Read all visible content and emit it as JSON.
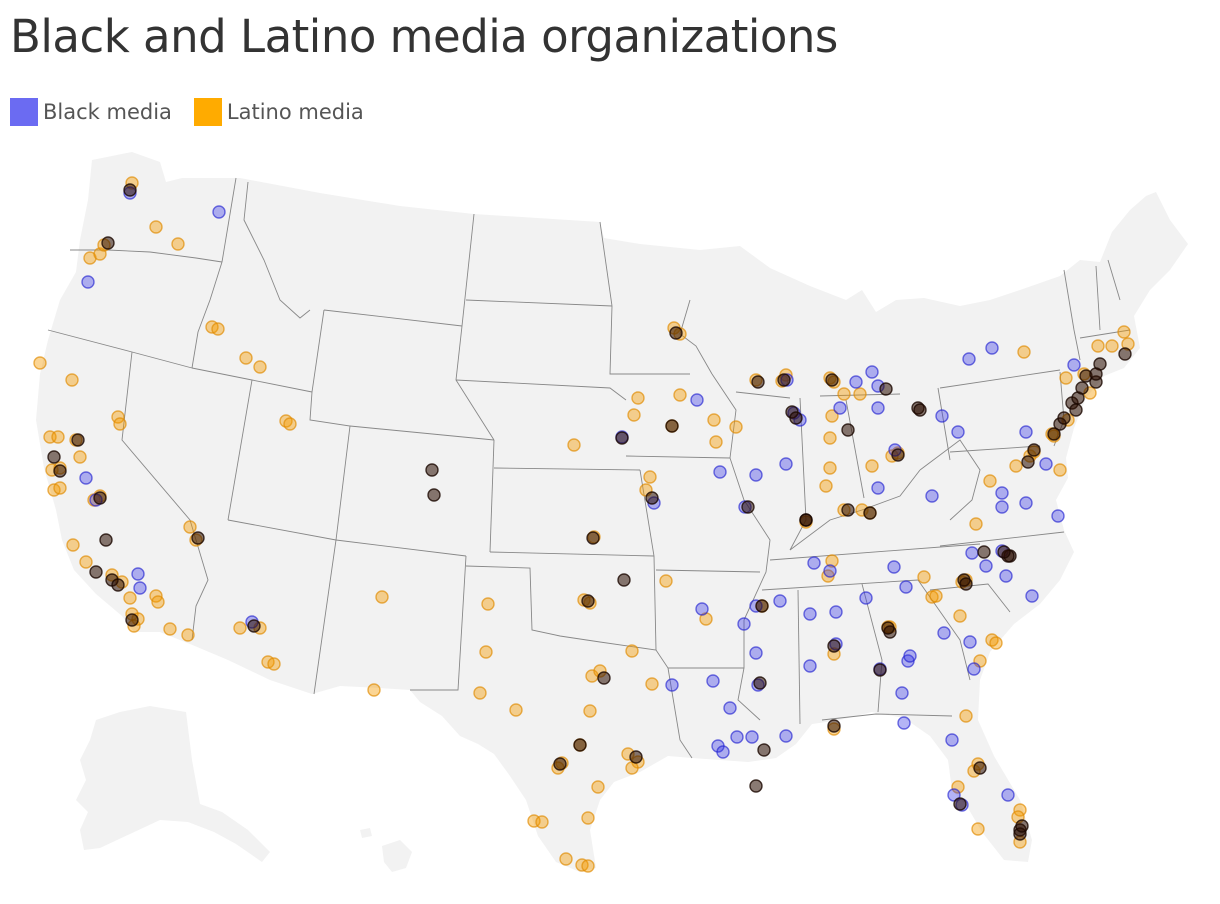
{
  "title": "Black and Latino media organizations",
  "legend": [
    {
      "label": "Black media",
      "color": "#6b6bf2"
    },
    {
      "label": "Latino media",
      "color": "#ffab00"
    }
  ],
  "colors": {
    "land": "#f2f2f2",
    "border": "#888888",
    "black_media": "#3a3ae8",
    "latino_media": "#f59a00",
    "overlap_dark": "#2a0c00"
  },
  "map_type": "dot map of organization locations over US states",
  "markers": {
    "black": [
      [
        130,
        193
      ],
      [
        219,
        212
      ],
      [
        88,
        282
      ],
      [
        86,
        478
      ],
      [
        96,
        500
      ],
      [
        138,
        574
      ],
      [
        140,
        588
      ],
      [
        252,
        622
      ],
      [
        622,
        437
      ],
      [
        654,
        503
      ],
      [
        697,
        400
      ],
      [
        720,
        472
      ],
      [
        745,
        507
      ],
      [
        756,
        475
      ],
      [
        786,
        464
      ],
      [
        800,
        420
      ],
      [
        787,
        380
      ],
      [
        794,
        413
      ],
      [
        856,
        382
      ],
      [
        872,
        372
      ],
      [
        878,
        386
      ],
      [
        878,
        408
      ],
      [
        840,
        408
      ],
      [
        878,
        488
      ],
      [
        895,
        450
      ],
      [
        932,
        496
      ],
      [
        969,
        359
      ],
      [
        992,
        348
      ],
      [
        958,
        432
      ],
      [
        942,
        416
      ],
      [
        1002,
        493
      ],
      [
        1002,
        507
      ],
      [
        1026,
        503
      ],
      [
        1002,
        551
      ],
      [
        1032,
        596
      ],
      [
        986,
        566
      ],
      [
        972,
        553
      ],
      [
        1006,
        576
      ],
      [
        906,
        587
      ],
      [
        894,
        567
      ],
      [
        866,
        598
      ],
      [
        830,
        571
      ],
      [
        814,
        563
      ],
      [
        810,
        614
      ],
      [
        836,
        612
      ],
      [
        780,
        601
      ],
      [
        756,
        606
      ],
      [
        744,
        624
      ],
      [
        702,
        609
      ],
      [
        672,
        685
      ],
      [
        713,
        681
      ],
      [
        730,
        708
      ],
      [
        756,
        653
      ],
      [
        758,
        685
      ],
      [
        718,
        746
      ],
      [
        723,
        752
      ],
      [
        737,
        737
      ],
      [
        752,
        737
      ],
      [
        786,
        736
      ],
      [
        810,
        666
      ],
      [
        836,
        644
      ],
      [
        880,
        669
      ],
      [
        902,
        693
      ],
      [
        908,
        661
      ],
      [
        910,
        656
      ],
      [
        944,
        633
      ],
      [
        904,
        723
      ],
      [
        952,
        740
      ],
      [
        974,
        669
      ],
      [
        970,
        642
      ],
      [
        954,
        795
      ],
      [
        962,
        805
      ],
      [
        1008,
        795
      ],
      [
        1026,
        432
      ],
      [
        1058,
        516
      ],
      [
        1046,
        464
      ],
      [
        1074,
        365
      ]
    ],
    "latino": [
      [
        132,
        183
      ],
      [
        156,
        227
      ],
      [
        178,
        244
      ],
      [
        90,
        258
      ],
      [
        100,
        254
      ],
      [
        104,
        245
      ],
      [
        212,
        327
      ],
      [
        218,
        329
      ],
      [
        40,
        363
      ],
      [
        72,
        380
      ],
      [
        118,
        417
      ],
      [
        120,
        424
      ],
      [
        50,
        437
      ],
      [
        58,
        437
      ],
      [
        80,
        457
      ],
      [
        76,
        440
      ],
      [
        52,
        470
      ],
      [
        60,
        468
      ],
      [
        54,
        490
      ],
      [
        60,
        488
      ],
      [
        94,
        500
      ],
      [
        100,
        496
      ],
      [
        73,
        545
      ],
      [
        86,
        562
      ],
      [
        112,
        575
      ],
      [
        122,
        582
      ],
      [
        130,
        598
      ],
      [
        132,
        614
      ],
      [
        134,
        626
      ],
      [
        138,
        619
      ],
      [
        156,
        596
      ],
      [
        158,
        602
      ],
      [
        170,
        629
      ],
      [
        188,
        635
      ],
      [
        190,
        527
      ],
      [
        196,
        540
      ],
      [
        246,
        358
      ],
      [
        260,
        367
      ],
      [
        286,
        421
      ],
      [
        290,
        424
      ],
      [
        240,
        628
      ],
      [
        260,
        628
      ],
      [
        268,
        662
      ],
      [
        274,
        664
      ],
      [
        374,
        690
      ],
      [
        382,
        597
      ],
      [
        488,
        604
      ],
      [
        486,
        652
      ],
      [
        480,
        693
      ],
      [
        516,
        710
      ],
      [
        534,
        821
      ],
      [
        542,
        822
      ],
      [
        566,
        859
      ],
      [
        582,
        865
      ],
      [
        588,
        866
      ],
      [
        598,
        787
      ],
      [
        588,
        818
      ],
      [
        562,
        763
      ],
      [
        558,
        768
      ],
      [
        580,
        745
      ],
      [
        590,
        711
      ],
      [
        592,
        676
      ],
      [
        600,
        671
      ],
      [
        632,
        651
      ],
      [
        652,
        684
      ],
      [
        628,
        754
      ],
      [
        638,
        762
      ],
      [
        632,
        768
      ],
      [
        584,
        600
      ],
      [
        590,
        603
      ],
      [
        594,
        537
      ],
      [
        574,
        445
      ],
      [
        638,
        398
      ],
      [
        634,
        415
      ],
      [
        650,
        477
      ],
      [
        646,
        490
      ],
      [
        672,
        426
      ],
      [
        680,
        395
      ],
      [
        714,
        420
      ],
      [
        716,
        442
      ],
      [
        736,
        427
      ],
      [
        666,
        581
      ],
      [
        706,
        619
      ],
      [
        674,
        328
      ],
      [
        680,
        334
      ],
      [
        756,
        380
      ],
      [
        762,
        606
      ],
      [
        782,
        381
      ],
      [
        786,
        375
      ],
      [
        830,
        378
      ],
      [
        834,
        382
      ],
      [
        844,
        394
      ],
      [
        860,
        394
      ],
      [
        832,
        416
      ],
      [
        830,
        438
      ],
      [
        826,
        486
      ],
      [
        830,
        468
      ],
      [
        828,
        576
      ],
      [
        832,
        561
      ],
      [
        834,
        654
      ],
      [
        872,
        466
      ],
      [
        862,
        510
      ],
      [
        870,
        513
      ],
      [
        844,
        510
      ],
      [
        806,
        522
      ],
      [
        898,
        453
      ],
      [
        892,
        456
      ],
      [
        890,
        627
      ],
      [
        888,
        627
      ],
      [
        834,
        729
      ],
      [
        932,
        597
      ],
      [
        936,
        596
      ],
      [
        924,
        577
      ],
      [
        960,
        616
      ],
      [
        962,
        582
      ],
      [
        992,
        640
      ],
      [
        996,
        643
      ],
      [
        966,
        716
      ],
      [
        980,
        661
      ],
      [
        974,
        771
      ],
      [
        978,
        764
      ],
      [
        958,
        787
      ],
      [
        978,
        829
      ],
      [
        1020,
        810
      ],
      [
        1018,
        817
      ],
      [
        1020,
        842
      ],
      [
        1024,
        352
      ],
      [
        1066,
        378
      ],
      [
        1060,
        470
      ],
      [
        1068,
        420
      ],
      [
        1084,
        374
      ],
      [
        1098,
        346
      ],
      [
        1112,
        346
      ],
      [
        1124,
        332
      ],
      [
        1128,
        344
      ],
      [
        1090,
        393
      ],
      [
        1054,
        436
      ],
      [
        990,
        481
      ],
      [
        1052,
        434
      ],
      [
        1016,
        466
      ],
      [
        1030,
        456
      ],
      [
        1034,
        452
      ],
      [
        966,
        580
      ],
      [
        976,
        524
      ]
    ],
    "overlap": [
      [
        130,
        190
      ],
      [
        108,
        243
      ],
      [
        78,
        440
      ],
      [
        54,
        457
      ],
      [
        60,
        471
      ],
      [
        100,
        498
      ],
      [
        106,
        540
      ],
      [
        96,
        572
      ],
      [
        112,
        580
      ],
      [
        118,
        585
      ],
      [
        132,
        620
      ],
      [
        198,
        538
      ],
      [
        254,
        626
      ],
      [
        432,
        470
      ],
      [
        434,
        495
      ],
      [
        593,
        538
      ],
      [
        622,
        438
      ],
      [
        652,
        498
      ],
      [
        676,
        333
      ],
      [
        672,
        426
      ],
      [
        748,
        507
      ],
      [
        758,
        382
      ],
      [
        784,
        380
      ],
      [
        792,
        412
      ],
      [
        796,
        418
      ],
      [
        832,
        380
      ],
      [
        848,
        430
      ],
      [
        848,
        510
      ],
      [
        870,
        513
      ],
      [
        886,
        389
      ],
      [
        898,
        455
      ],
      [
        918,
        408
      ],
      [
        920,
        410
      ],
      [
        964,
        580
      ],
      [
        966,
        584
      ],
      [
        1010,
        556
      ],
      [
        1008,
        556
      ],
      [
        1004,
        552
      ],
      [
        984,
        552
      ],
      [
        890,
        632
      ],
      [
        888,
        628
      ],
      [
        880,
        670
      ],
      [
        834,
        646
      ],
      [
        762,
        606
      ],
      [
        760,
        683
      ],
      [
        764,
        750
      ],
      [
        834,
        726
      ],
      [
        756,
        786
      ],
      [
        980,
        768
      ],
      [
        960,
        804
      ],
      [
        1020,
        830
      ],
      [
        1020,
        834
      ],
      [
        1022,
        826
      ],
      [
        1054,
        434
      ],
      [
        1060,
        424
      ],
      [
        1064,
        418
      ],
      [
        1072,
        403
      ],
      [
        1078,
        398
      ],
      [
        1082,
        388
      ],
      [
        1086,
        376
      ],
      [
        1096,
        382
      ],
      [
        1100,
        364
      ],
      [
        1028,
        462
      ],
      [
        1034,
        450
      ],
      [
        588,
        601
      ],
      [
        604,
        678
      ],
      [
        580,
        745
      ],
      [
        636,
        757
      ],
      [
        560,
        764
      ],
      [
        624,
        580
      ],
      [
        806,
        520
      ],
      [
        806,
        520
      ],
      [
        1125,
        354
      ],
      [
        1076,
        410
      ],
      [
        1096,
        374
      ]
    ]
  }
}
